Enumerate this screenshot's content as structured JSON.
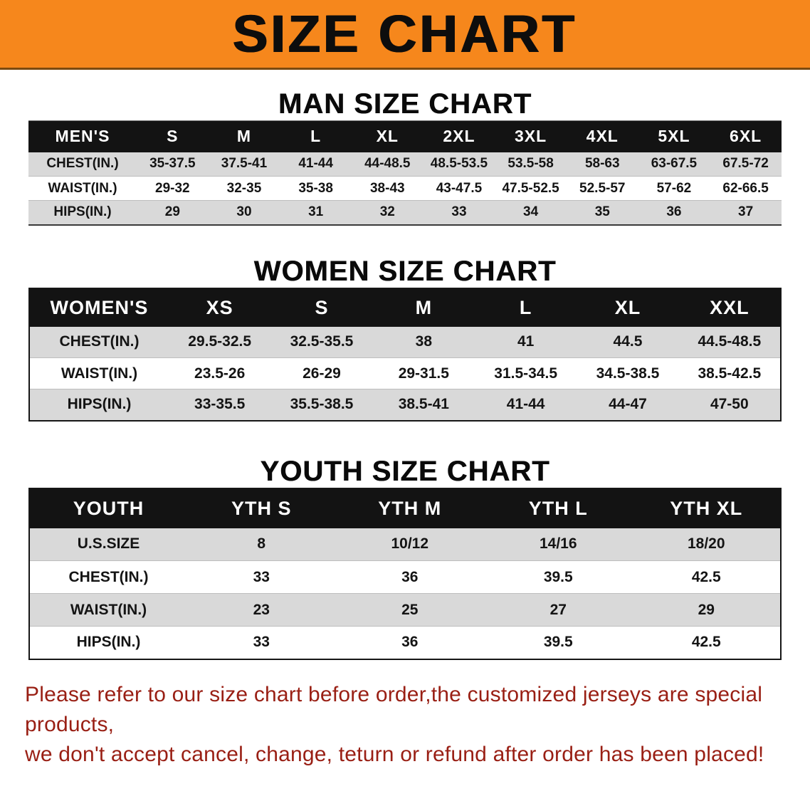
{
  "banner": {
    "title": "SIZE CHART",
    "bg_color": "#f6871c",
    "text_color": "#0d0d0d"
  },
  "sections": {
    "men": {
      "heading": "MAN SIZE CHART"
    },
    "women": {
      "heading": "WOMEN SIZE CHART"
    },
    "youth": {
      "heading": "YOUTH SIZE CHART"
    }
  },
  "tables": {
    "men": {
      "header": [
        "MEN'S",
        "S",
        "M",
        "L",
        "XL",
        "2XL",
        "3XL",
        "4XL",
        "5XL",
        "6XL"
      ],
      "rows": [
        {
          "label": "CHEST(IN.)",
          "values": [
            "35-37.5",
            "37.5-41",
            "41-44",
            "44-48.5",
            "48.5-53.5",
            "53.5-58",
            "58-63",
            "63-67.5",
            "67.5-72"
          ]
        },
        {
          "label": "WAIST(IN.)",
          "values": [
            "29-32",
            "32-35",
            "35-38",
            "38-43",
            "43-47.5",
            "47.5-52.5",
            "52.5-57",
            "57-62",
            "62-66.5"
          ]
        },
        {
          "label": "HIPS(IN.)",
          "values": [
            "29",
            "30",
            "31",
            "32",
            "33",
            "34",
            "35",
            "36",
            "37"
          ]
        }
      ]
    },
    "women": {
      "header": [
        "WOMEN'S",
        "XS",
        "S",
        "M",
        "L",
        "XL",
        "XXL"
      ],
      "rows": [
        {
          "label": "CHEST(IN.)",
          "values": [
            "29.5-32.5",
            "32.5-35.5",
            "38",
            "41",
            "44.5",
            "44.5-48.5"
          ]
        },
        {
          "label": "WAIST(IN.)",
          "values": [
            "23.5-26",
            "26-29",
            "29-31.5",
            "31.5-34.5",
            "34.5-38.5",
            "38.5-42.5"
          ]
        },
        {
          "label": "HIPS(IN.)",
          "values": [
            "33-35.5",
            "35.5-38.5",
            "38.5-41",
            "41-44",
            "44-47",
            "47-50"
          ]
        }
      ]
    },
    "youth": {
      "header": [
        "YOUTH",
        "YTH S",
        "YTH M",
        "YTH L",
        "YTH XL"
      ],
      "rows": [
        {
          "label": "U.S.SIZE",
          "values": [
            "8",
            "10/12",
            "14/16",
            "18/20"
          ]
        },
        {
          "label": "CHEST(IN.)",
          "values": [
            "33",
            "36",
            "39.5",
            "42.5"
          ]
        },
        {
          "label": "WAIST(IN.)",
          "values": [
            "23",
            "25",
            "27",
            "29"
          ]
        },
        {
          "label": "HIPS(IN.)",
          "values": [
            "33",
            "36",
            "39.5",
            "42.5"
          ]
        }
      ]
    }
  },
  "footer": {
    "line1": "Please refer to our size chart before order,the customized jerseys are special products,",
    "line2": "we don't accept cancel, change, teturn or refund after order has been placed!"
  }
}
